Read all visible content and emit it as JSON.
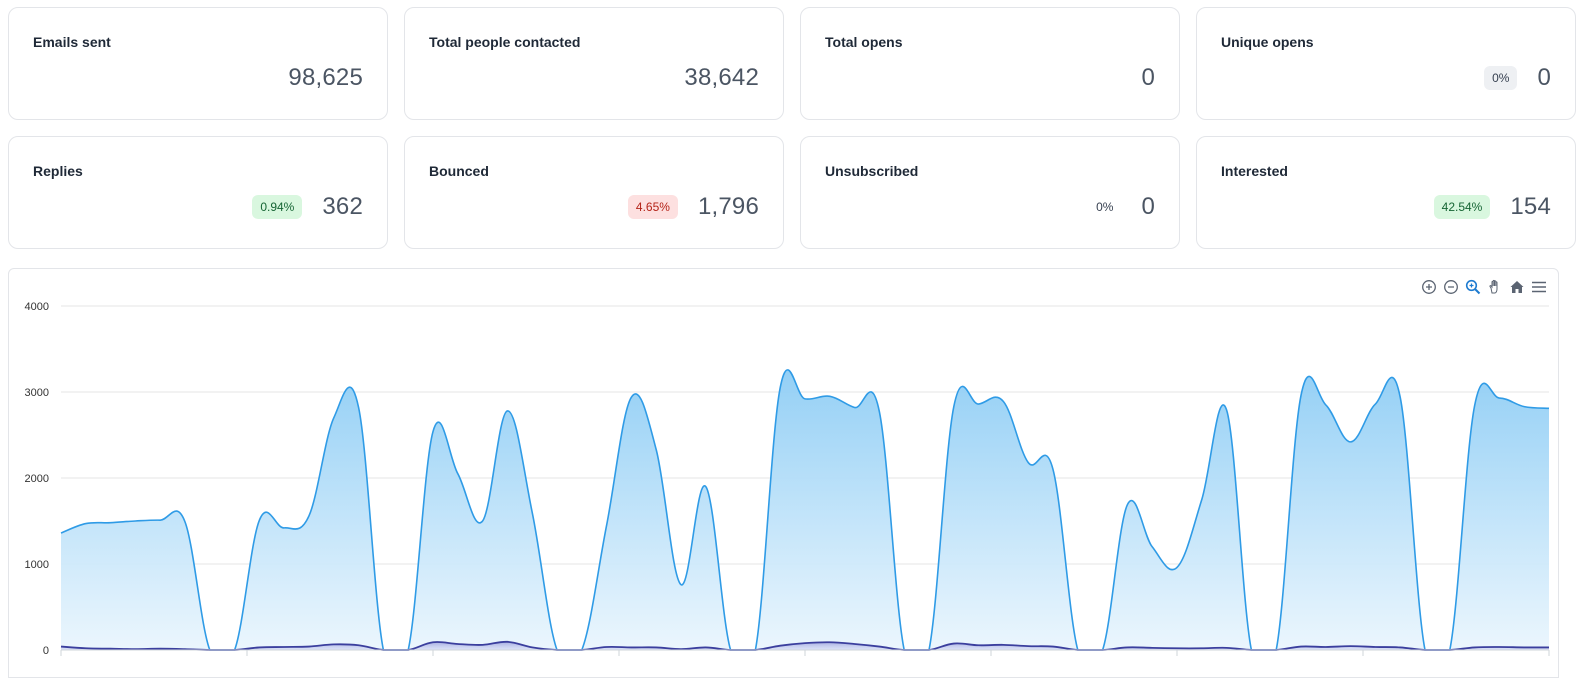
{
  "cards": [
    {
      "title": "Emails sent",
      "value": "98,625",
      "badge": null,
      "badge_style": null
    },
    {
      "title": "Total people contacted",
      "value": "38,642",
      "badge": null,
      "badge_style": null
    },
    {
      "title": "Total opens",
      "value": "0",
      "badge": null,
      "badge_style": null
    },
    {
      "title": "Unique opens",
      "value": "0",
      "badge": "0%",
      "badge_style": "neutral"
    },
    {
      "title": "Replies",
      "value": "362",
      "badge": "0.94%",
      "badge_style": "green"
    },
    {
      "title": "Bounced",
      "value": "1,796",
      "badge": "4.65%",
      "badge_style": "red"
    },
    {
      "title": "Unsubscribed",
      "value": "0",
      "badge": "0%",
      "badge_style": "plain"
    },
    {
      "title": "Interested",
      "value": "154",
      "badge": "42.54%",
      "badge_style": "green"
    }
  ],
  "toolbar": {
    "icons": [
      "zoom-in-icon",
      "zoom-out-icon",
      "selection-zoom-icon",
      "pan-hand-icon",
      "reset-home-icon",
      "menu-icon"
    ]
  },
  "colors": {
    "primary_line": "#2f9be6",
    "primary_fill_top": "#8ecdf5",
    "secondary_line": "#3b3f9e",
    "toolbar_active": "#1e7bd0",
    "toolbar_icon": "#5b6472"
  },
  "chart_data": {
    "type": "area",
    "ylim": [
      0,
      4000
    ],
    "yticks": [
      0,
      1000,
      2000,
      3000,
      4000
    ],
    "ytick_labels": [
      "0",
      "1000",
      "2000",
      "3000",
      "4000"
    ],
    "grid": true,
    "legend": "none",
    "series": [
      {
        "values": [
          1360,
          1470,
          1480,
          1500,
          1510,
          1490,
          0,
          0,
          1510,
          1420,
          1560,
          2700,
          2820,
          0,
          0,
          2540,
          2050,
          1500,
          2780,
          1600,
          0,
          0,
          1450,
          2940,
          2330,
          760,
          1900,
          0,
          0,
          3050,
          2920,
          2950,
          2820,
          2770,
          0,
          0,
          2830,
          2860,
          2890,
          2180,
          2100,
          0,
          0,
          1690,
          1200,
          960,
          1750,
          2790,
          0,
          0,
          2960,
          2850,
          2420,
          2860,
          2940,
          0,
          0,
          2840,
          2930,
          2830,
          2810
        ]
      },
      {
        "values": [
          40,
          20,
          15,
          10,
          15,
          10,
          0,
          0,
          30,
          35,
          40,
          65,
          55,
          0,
          0,
          90,
          70,
          60,
          95,
          30,
          0,
          0,
          35,
          30,
          30,
          10,
          30,
          0,
          0,
          50,
          80,
          90,
          70,
          40,
          0,
          0,
          75,
          55,
          60,
          45,
          40,
          0,
          0,
          30,
          25,
          20,
          20,
          25,
          0,
          0,
          40,
          35,
          45,
          35,
          30,
          0,
          0,
          30,
          35,
          30,
          30
        ]
      }
    ]
  }
}
